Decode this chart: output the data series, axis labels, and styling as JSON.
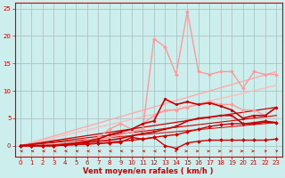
{
  "bg_color": "#cceeed",
  "grid_color": "#aabbbb",
  "xlabel": "Vent moyen/en rafales ( km/h )",
  "xlabel_color": "#cc0000",
  "tick_color": "#cc0000",
  "xlim": [
    -0.5,
    23.5
  ],
  "ylim": [
    -2.0,
    26
  ],
  "yticks": [
    0,
    5,
    10,
    15,
    20,
    25
  ],
  "xticks": [
    0,
    1,
    2,
    3,
    4,
    5,
    6,
    7,
    8,
    9,
    10,
    11,
    12,
    13,
    14,
    15,
    16,
    17,
    18,
    19,
    20,
    21,
    22,
    23
  ],
  "lines": [
    {
      "x": [
        0,
        1,
        2,
        3,
        4,
        5,
        6,
        7,
        8,
        9,
        10,
        11,
        12,
        13,
        14,
        15,
        16,
        17,
        18,
        19,
        20,
        21,
        22,
        23
      ],
      "y": [
        0,
        0,
        0,
        0,
        0.3,
        0.5,
        0.8,
        1.2,
        1.5,
        2.0,
        2.5,
        3.0,
        19.5,
        18.0,
        13.0,
        24.5,
        13.5,
        13.0,
        13.5,
        13.5,
        10.5,
        13.5,
        13.0,
        13.0
      ],
      "color": "#ff9999",
      "lw": 1.0,
      "marker": "D",
      "ms": 2.0,
      "zorder": 4
    },
    {
      "x": [
        0,
        1,
        2,
        3,
        4,
        5,
        6,
        7,
        8,
        9,
        10,
        11,
        12,
        13,
        14,
        15,
        16,
        17,
        18,
        19,
        20,
        21,
        22,
        23
      ],
      "y": [
        0,
        0,
        0,
        0,
        0.3,
        0.5,
        1.0,
        1.5,
        3.0,
        4.0,
        3.0,
        4.0,
        5.5,
        6.5,
        6.5,
        7.0,
        7.5,
        8.0,
        7.5,
        7.5,
        6.5,
        6.5,
        5.5,
        7.0
      ],
      "color": "#ff9999",
      "lw": 1.0,
      "marker": "D",
      "ms": 2.0,
      "zorder": 4
    },
    {
      "x": [
        0,
        23
      ],
      "y": [
        0,
        13.5
      ],
      "color": "#ffaaaa",
      "lw": 1.0,
      "marker": null,
      "ms": 0,
      "zorder": 2
    },
    {
      "x": [
        0,
        23
      ],
      "y": [
        0,
        11.0
      ],
      "color": "#ffbbbb",
      "lw": 1.0,
      "marker": null,
      "ms": 0,
      "zorder": 2
    },
    {
      "x": [
        0,
        1,
        2,
        3,
        4,
        5,
        6,
        7,
        8,
        9,
        10,
        11,
        12,
        13,
        14,
        15,
        16,
        17,
        18,
        19,
        20,
        21,
        22,
        23
      ],
      "y": [
        0,
        0,
        0,
        0.1,
        0.3,
        0.5,
        0.8,
        1.2,
        2.0,
        2.5,
        3.0,
        4.0,
        4.5,
        8.5,
        7.5,
        8.0,
        7.5,
        7.8,
        7.2,
        6.5,
        5.0,
        5.5,
        5.5,
        7.0
      ],
      "color": "#cc0000",
      "lw": 1.2,
      "marker": "o",
      "ms": 2.0,
      "zorder": 6
    },
    {
      "x": [
        0,
        1,
        2,
        3,
        4,
        5,
        6,
        7,
        8,
        9,
        10,
        11,
        12,
        13,
        14,
        15,
        16,
        17,
        18,
        19,
        20,
        21,
        22,
        23
      ],
      "y": [
        0,
        0,
        0,
        0,
        0.2,
        0.4,
        0.6,
        0.8,
        1.0,
        1.3,
        1.8,
        2.2,
        2.5,
        3.0,
        3.5,
        4.5,
        5.0,
        5.2,
        5.5,
        5.5,
        4.0,
        4.0,
        4.3,
        4.2
      ],
      "color": "#cc0000",
      "lw": 1.2,
      "marker": "s",
      "ms": 2.0,
      "zorder": 5
    },
    {
      "x": [
        0,
        1,
        2,
        3,
        4,
        5,
        6,
        7,
        8,
        9,
        10,
        11,
        12,
        13,
        14,
        15,
        16,
        17,
        18,
        19,
        20,
        21,
        22,
        23
      ],
      "y": [
        0,
        0,
        0,
        0,
        0.1,
        0.2,
        0.3,
        0.4,
        0.6,
        0.8,
        1.0,
        1.2,
        1.5,
        1.8,
        2.0,
        2.5,
        3.0,
        3.5,
        3.8,
        4.0,
        4.0,
        4.2,
        4.5,
        4.2
      ],
      "color": "#cc0000",
      "lw": 1.0,
      "marker": "D",
      "ms": 2.0,
      "zorder": 5
    },
    {
      "x": [
        0,
        1,
        2,
        3,
        4,
        5,
        6,
        7,
        8,
        9,
        10,
        11,
        12,
        13,
        14,
        15,
        16,
        17,
        18,
        19,
        20,
        21,
        22,
        23
      ],
      "y": [
        0,
        0,
        0,
        0,
        0.1,
        0.2,
        0.3,
        0.4,
        0.5,
        0.6,
        1.5,
        1.2,
        1.5,
        0.0,
        -0.5,
        0.5,
        0.8,
        1.0,
        1.0,
        1.0,
        1.0,
        1.0,
        1.0,
        1.2
      ],
      "color": "#cc0000",
      "lw": 1.0,
      "marker": "D",
      "ms": 2.0,
      "zorder": 5
    },
    {
      "x": [
        0,
        23
      ],
      "y": [
        0,
        7.0
      ],
      "color": "#cc0000",
      "lw": 0.9,
      "marker": null,
      "ms": 0,
      "zorder": 2
    },
    {
      "x": [
        0,
        23
      ],
      "y": [
        0,
        5.5
      ],
      "color": "#cc0000",
      "lw": 0.8,
      "marker": null,
      "ms": 0,
      "zorder": 2
    },
    {
      "x": [
        0,
        23
      ],
      "y": [
        0,
        4.2
      ],
      "color": "#cc0000",
      "lw": 0.7,
      "marker": null,
      "ms": 0,
      "zorder": 2
    }
  ],
  "arrow_angles": [
    180,
    180,
    180,
    180,
    180,
    180,
    180,
    180,
    180,
    180,
    45,
    180,
    180,
    135,
    135,
    0,
    0,
    0,
    0,
    0,
    0,
    0,
    45,
    45
  ],
  "arrow_color": "#cc0000"
}
